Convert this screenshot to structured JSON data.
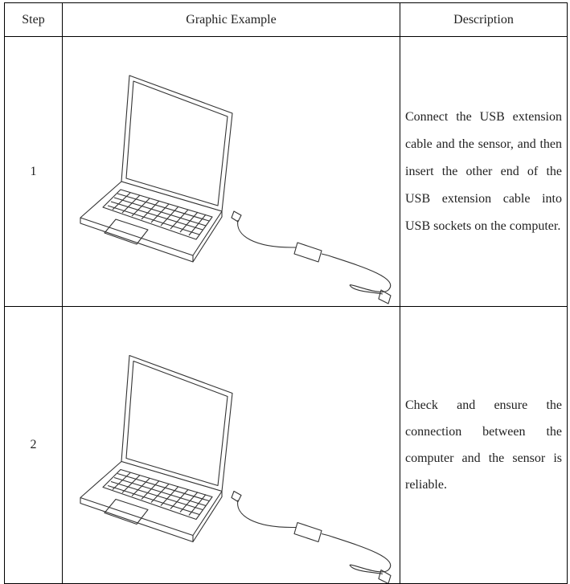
{
  "table": {
    "headers": [
      "Step",
      "Graphic Example",
      "Description"
    ],
    "rows": [
      {
        "step": "1",
        "description": "Connect the USB extension cable and the sensor, and then insert the other end of the USB extension cable into USB sockets on the computer."
      },
      {
        "step": "2",
        "description": "Check and ensure the connection between the computer and the sensor is reliable."
      }
    ]
  }
}
